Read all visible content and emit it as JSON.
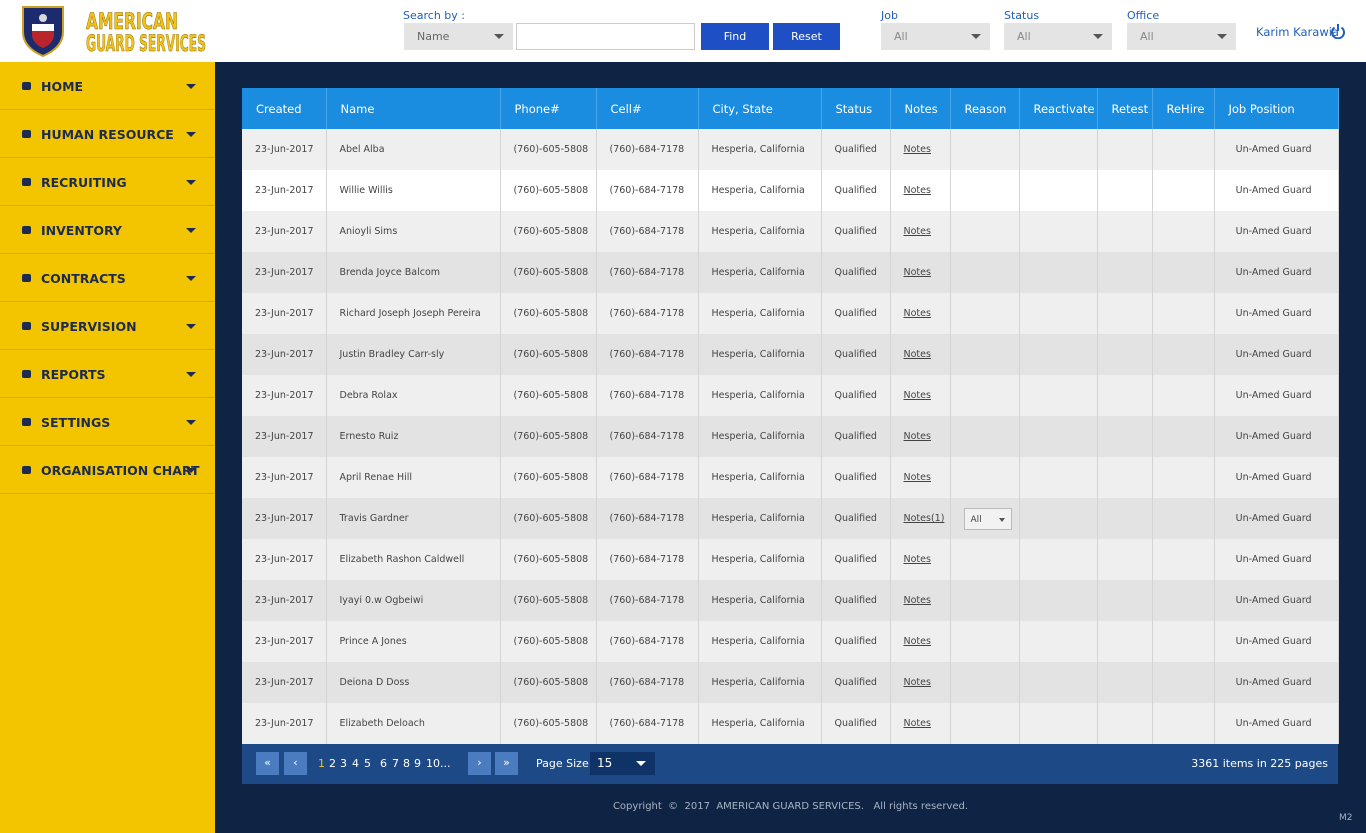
{
  "header": {
    "logo": {
      "line1": "AMERICAN",
      "line2": "GUARD SERVICES"
    },
    "search_label": "Search by :",
    "search_field": "Name",
    "find_button": "Find",
    "reset_button": "Reset",
    "filters": [
      {
        "label": "Job",
        "value": "All"
      },
      {
        "label": "Status",
        "value": "All"
      },
      {
        "label": "Office",
        "value": "All"
      }
    ],
    "user": "Karim Karawia"
  },
  "sidebar": {
    "items": [
      "HOME",
      "HUMAN RESOURCE",
      "RECRUITING",
      "INVENTORY",
      "CONTRACTS",
      "SUPERVISION",
      "REPORTS",
      "SETTINGS",
      "ORGANISATION CHART"
    ]
  },
  "table": {
    "columns": [
      "Created",
      "Name",
      "Phone#",
      "Cell#",
      "City, State",
      "Status",
      "Notes",
      "Reason",
      "Reactivate",
      "Retest",
      "ReHire",
      "Job Position"
    ],
    "rows": [
      {
        "created": "23-Jun-2017",
        "name": "Abel Alba",
        "phone": "(760)-605-5808",
        "cell": "(760)-684-7178",
        "city_state": "Hesperia, California",
        "status": "Qualified",
        "notes": "Notes",
        "job_position": "Un-Amed Guard"
      },
      {
        "created": "23-Jun-2017",
        "name": "Willie Willis",
        "phone": "(760)-605-5808",
        "cell": "(760)-684-7178",
        "city_state": "Hesperia, California",
        "status": "Qualified",
        "notes": "Notes",
        "job_position": "Un-Amed Guard"
      },
      {
        "created": "23-Jun-2017",
        "name": "Anioyli Sims",
        "phone": "(760)-605-5808",
        "cell": "(760)-684-7178",
        "city_state": "Hesperia, California",
        "status": "Qualified",
        "notes": "Notes",
        "job_position": "Un-Amed Guard"
      },
      {
        "created": "23-Jun-2017",
        "name": "Brenda Joyce Balcom",
        "phone": "(760)-605-5808",
        "cell": "(760)-684-7178",
        "city_state": "Hesperia, California",
        "status": "Qualified",
        "notes": "Notes",
        "job_position": "Un-Amed Guard"
      },
      {
        "created": "23-Jun-2017",
        "name": "Richard Joseph Joseph Pereira",
        "phone": "(760)-605-5808",
        "cell": "(760)-684-7178",
        "city_state": "Hesperia, California",
        "status": "Qualified",
        "notes": "Notes",
        "job_position": "Un-Amed Guard"
      },
      {
        "created": "23-Jun-2017",
        "name": "Justin Bradley Carr-sly",
        "phone": "(760)-605-5808",
        "cell": "(760)-684-7178",
        "city_state": "Hesperia, California",
        "status": "Qualified",
        "notes": "Notes",
        "job_position": "Un-Amed Guard"
      },
      {
        "created": "23-Jun-2017",
        "name": "Debra Rolax",
        "phone": "(760)-605-5808",
        "cell": "(760)-684-7178",
        "city_state": "Hesperia, California",
        "status": "Qualified",
        "notes": "Notes",
        "job_position": "Un-Amed Guard"
      },
      {
        "created": "23-Jun-2017",
        "name": "Ernesto Ruiz",
        "phone": "(760)-605-5808",
        "cell": "(760)-684-7178",
        "city_state": "Hesperia, California",
        "status": "Qualified",
        "notes": "Notes",
        "job_position": "Un-Amed Guard"
      },
      {
        "created": "23-Jun-2017",
        "name": "April Renae Hill",
        "phone": "(760)-605-5808",
        "cell": "(760)-684-7178",
        "city_state": "Hesperia, California",
        "status": "Qualified",
        "notes": "Notes",
        "job_position": "Un-Amed Guard"
      },
      {
        "created": "23-Jun-2017",
        "name": "Travis Gardner",
        "phone": "(760)-605-5808",
        "cell": "(760)-684-7178",
        "city_state": "Hesperia, California",
        "status": "Qualified",
        "notes": "Notes(1)",
        "reason": "All",
        "job_position": "Un-Amed Guard"
      },
      {
        "created": "23-Jun-2017",
        "name": "Elizabeth Rashon Caldwell",
        "phone": "(760)-605-5808",
        "cell": "(760)-684-7178",
        "city_state": "Hesperia, California",
        "status": "Qualified",
        "notes": "Notes",
        "job_position": "Un-Amed Guard"
      },
      {
        "created": "23-Jun-2017",
        "name": "Iyayi 0.w Ogbeiwi",
        "phone": "(760)-605-5808",
        "cell": "(760)-684-7178",
        "city_state": "Hesperia, California",
        "status": "Qualified",
        "notes": "Notes",
        "job_position": "Un-Amed Guard"
      },
      {
        "created": "23-Jun-2017",
        "name": "Prince A Jones",
        "phone": "(760)-605-5808",
        "cell": "(760)-684-7178",
        "city_state": "Hesperia, California",
        "status": "Qualified",
        "notes": "Notes",
        "job_position": "Un-Amed Guard"
      },
      {
        "created": "23-Jun-2017",
        "name": "Deiona D Doss",
        "phone": "(760)-605-5808",
        "cell": "(760)-684-7178",
        "city_state": "Hesperia, California",
        "status": "Qualified",
        "notes": "Notes",
        "job_position": "Un-Amed Guard"
      },
      {
        "created": "23-Jun-2017",
        "name": "Elizabeth Deloach",
        "phone": "(760)-605-5808",
        "cell": "(760)-684-7178",
        "city_state": "Hesperia, California",
        "status": "Qualified",
        "notes": "Notes",
        "job_position": "Un-Amed Guard"
      }
    ]
  },
  "pagination": {
    "pages": [
      1,
      2,
      3,
      4,
      5,
      6,
      7,
      8,
      9,
      10
    ],
    "ellipsis": "...",
    "page_size_label": "Page Size :",
    "page_size": 15,
    "summary": "3361 items in 225 pages"
  },
  "footer": {
    "copyright": "Copyright  ©  2017  AMERICAN GUARD SERVICES.   All rights reserved.",
    "version": "M2"
  }
}
